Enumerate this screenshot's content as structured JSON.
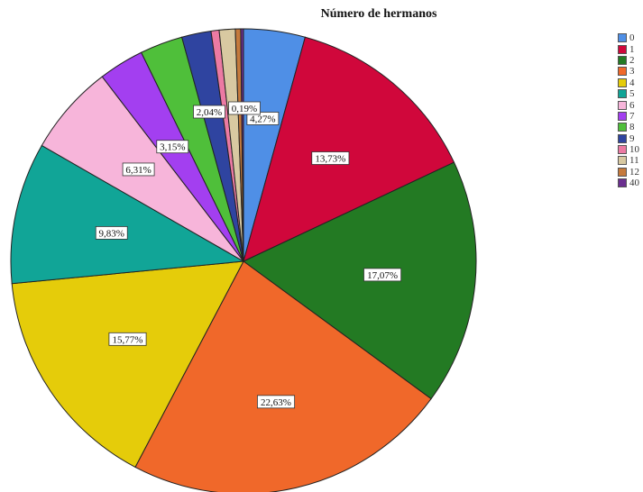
{
  "chart_data": {
    "type": "pie",
    "title": "Número de hermanos",
    "slices": [
      {
        "label": "0",
        "value": 4.27,
        "display": "4,27%",
        "color": "#4f8fe6"
      },
      {
        "label": "1",
        "value": 13.73,
        "display": "13,73%",
        "color": "#d0073b"
      },
      {
        "label": "2",
        "value": 17.07,
        "display": "17,07%",
        "color": "#237a23"
      },
      {
        "label": "3",
        "value": 22.63,
        "display": "22,63%",
        "color": "#f0682a"
      },
      {
        "label": "4",
        "value": 15.77,
        "display": "15,77%",
        "color": "#e5cc0a"
      },
      {
        "label": "5",
        "value": 9.83,
        "display": "9,83%",
        "color": "#11a597"
      },
      {
        "label": "6",
        "value": 6.31,
        "display": "6,31%",
        "color": "#f7b5da"
      },
      {
        "label": "7",
        "value": 3.15,
        "display": "3,15%",
        "color": "#a33ff0"
      },
      {
        "label": "8",
        "value": 2.97,
        "display": "",
        "color": "#4fbf3a"
      },
      {
        "label": "9",
        "value": 2.04,
        "display": "2,04%",
        "color": "#2f44a0"
      },
      {
        "label": "10",
        "value": 0.56,
        "display": "",
        "color": "#ec7aa3"
      },
      {
        "label": "11",
        "value": 1.11,
        "display": "",
        "color": "#d8c9a1"
      },
      {
        "label": "12",
        "value": 0.37,
        "display": "",
        "color": "#c57a3c"
      },
      {
        "label": "40",
        "value": 0.19,
        "display": "0,19%",
        "color": "#6a2f8f"
      }
    ],
    "legend_position": "right"
  }
}
